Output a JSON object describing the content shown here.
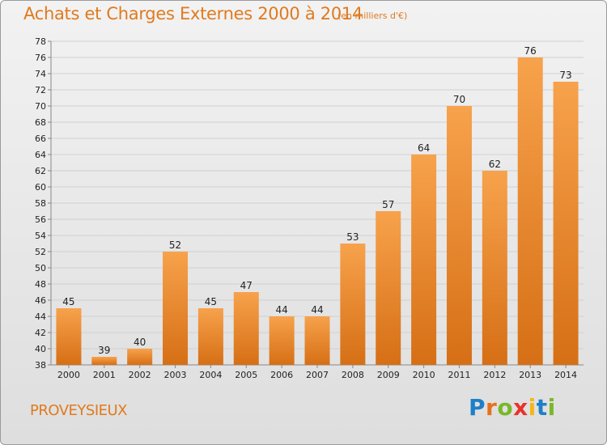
{
  "header": {
    "title": "Achats et Charges Externes 2000 à 2014",
    "subtitle": "(en milliers d'€)"
  },
  "footer": {
    "commune": "PROVEYSIEUX",
    "logo_letters": [
      {
        "ch": "P",
        "color": "#1e7fc8"
      },
      {
        "ch": "r",
        "color": "#e8701a"
      },
      {
        "ch": "o",
        "color": "#79b829"
      },
      {
        "ch": "x",
        "color": "#e8322b"
      },
      {
        "ch": "i",
        "color": "#f2b817"
      },
      {
        "ch": "t",
        "color": "#1e7fc8"
      },
      {
        "ch": "i",
        "color": "#79b829"
      }
    ]
  },
  "colors": {
    "bar_light": "#f7a24c",
    "bar_dark": "#d66f15",
    "grid": "#d0d0d0",
    "text": "#222222",
    "accent": "#e07a1e"
  },
  "chart_data": {
    "type": "bar",
    "categories": [
      "2000",
      "2001",
      "2002",
      "2003",
      "2004",
      "2005",
      "2006",
      "2007",
      "2008",
      "2009",
      "2010",
      "2011",
      "2012",
      "2013",
      "2014"
    ],
    "values": [
      45,
      39,
      40,
      52,
      45,
      47,
      44,
      44,
      53,
      57,
      64,
      70,
      62,
      76,
      73
    ],
    "ylim": [
      38,
      78
    ],
    "yticks": [
      38,
      40,
      42,
      44,
      46,
      48,
      50,
      52,
      54,
      56,
      58,
      60,
      62,
      64,
      66,
      68,
      70,
      72,
      74,
      76,
      78
    ],
    "grid": true,
    "legend": "none"
  }
}
